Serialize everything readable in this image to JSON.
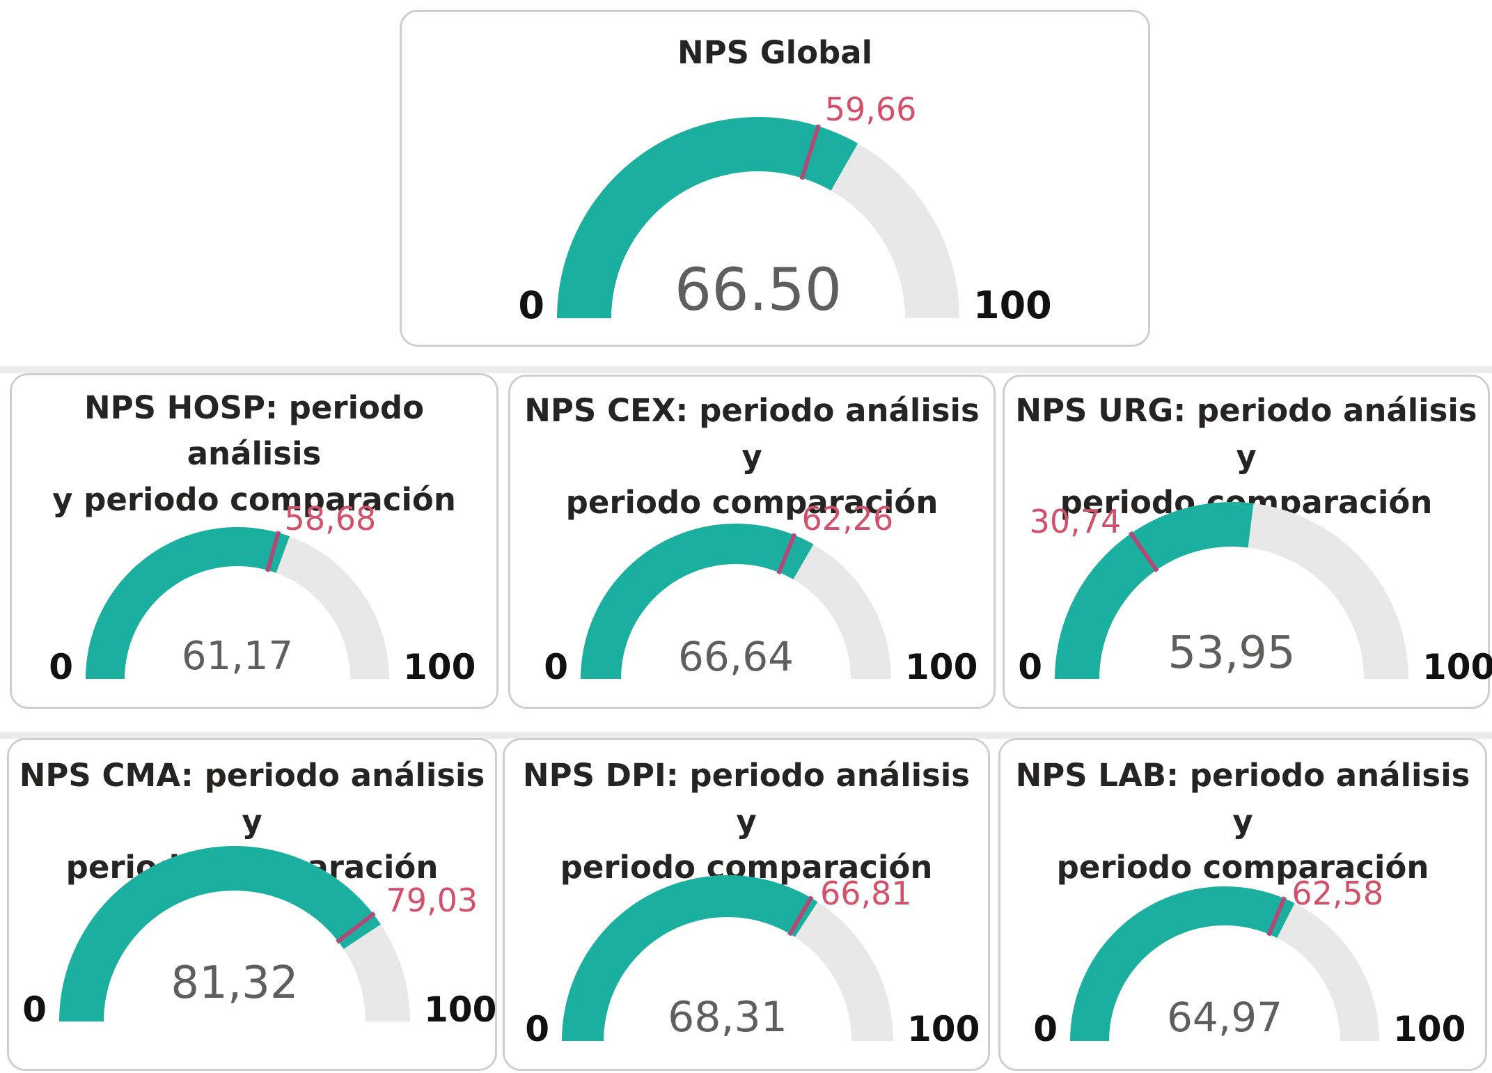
{
  "colors": {
    "fill": "#1aaf9f",
    "track": "#e8e8e8",
    "target": "#b24a78",
    "target_label": "#d2506a",
    "value": "#605e5c",
    "border": "#cfcfcf"
  },
  "chart_data": [
    {
      "type": "gauge",
      "title": "NPS Global",
      "value": 66.5,
      "value_label": "66.50",
      "target": 59.66,
      "target_label": "59,66",
      "min": 0,
      "max": 100,
      "min_label": "0",
      "max_label": "100"
    },
    {
      "type": "gauge",
      "title": "NPS HOSP: periodo análisis\ny periodo comparación",
      "value": 61.17,
      "value_label": "61,17",
      "target": 58.68,
      "target_label": "58,68",
      "min": 0,
      "max": 100,
      "min_label": "0",
      "max_label": "100"
    },
    {
      "type": "gauge",
      "title": "NPS CEX: periodo análisis y\nperiodo comparación",
      "value": 66.64,
      "value_label": "66,64",
      "target": 62.26,
      "target_label": "62,26",
      "min": 0,
      "max": 100,
      "min_label": "0",
      "max_label": "100"
    },
    {
      "type": "gauge",
      "title": "NPS URG: periodo análisis y\nperiodo comparación",
      "value": 53.95,
      "value_label": "53,95",
      "target": 30.74,
      "target_label": "30,74",
      "min": 0,
      "max": 100,
      "min_label": "0",
      "max_label": "100"
    },
    {
      "type": "gauge",
      "title": "NPS CMA: periodo análisis y\nperiodo comparación",
      "value": 81.32,
      "value_label": "81,32",
      "target": 79.03,
      "target_label": "79,03",
      "min": 0,
      "max": 100,
      "min_label": "0",
      "max_label": "100"
    },
    {
      "type": "gauge",
      "title": "NPS DPI: periodo análisis y\nperiodo comparación",
      "value": 68.31,
      "value_label": "68,31",
      "target": 66.81,
      "target_label": "66,81",
      "min": 0,
      "max": 100,
      "min_label": "0",
      "max_label": "100"
    },
    {
      "type": "gauge",
      "title": "NPS LAB: periodo análisis y\nperiodo comparación",
      "value": 64.97,
      "value_label": "64,97",
      "target": 62.58,
      "target_label": "62,58",
      "min": 0,
      "max": 100,
      "min_label": "0",
      "max_label": "100"
    }
  ]
}
